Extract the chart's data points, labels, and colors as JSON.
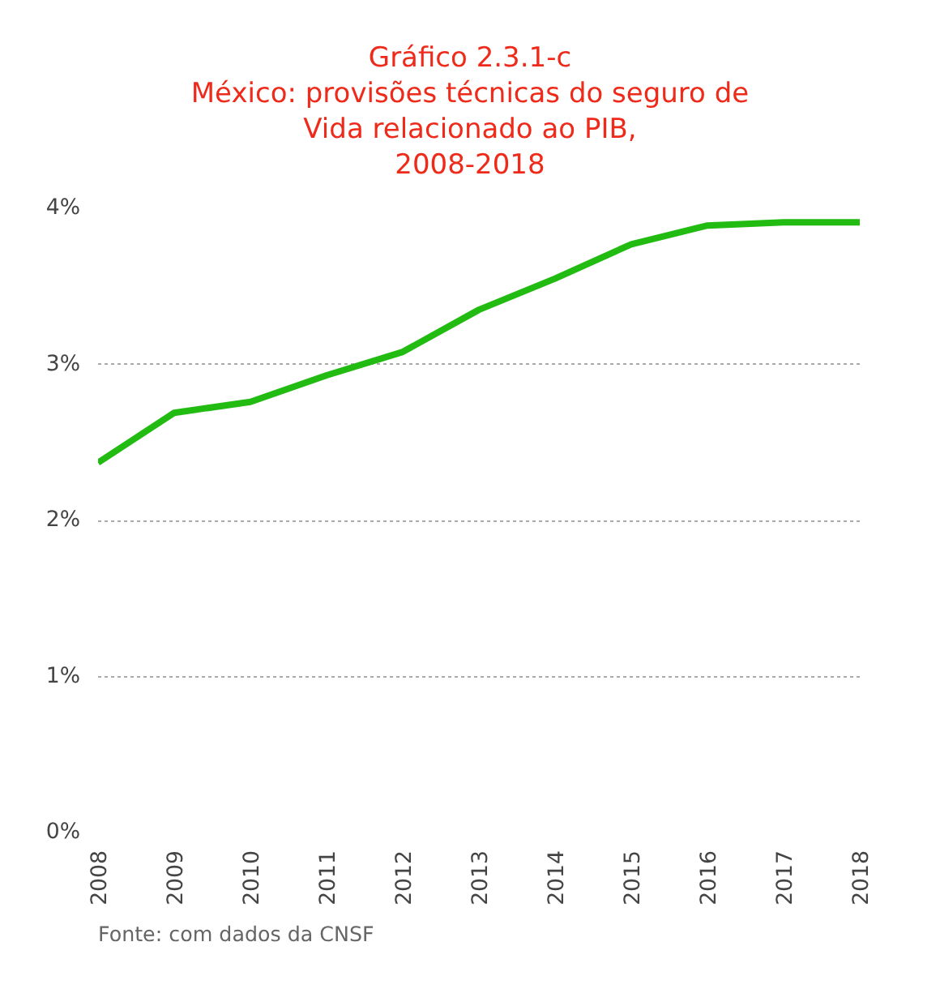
{
  "chart_data": {
    "type": "line",
    "title": "Gráfico 2.3.1-c\nMéxico: provisões técnicas do seguro de\nVida relacionado ao PIB,\n2008-2018",
    "x": [
      2008,
      2009,
      2010,
      2011,
      2012,
      2013,
      2014,
      2015,
      2016,
      2017,
      2018
    ],
    "series": [
      {
        "color": "#22bb11",
        "values": [
          2.37,
          2.69,
          2.76,
          2.93,
          3.08,
          3.35,
          3.55,
          3.77,
          3.89,
          3.91,
          3.91
        ]
      }
    ],
    "xlim": [
      2008,
      2018
    ],
    "xticks": [
      2008,
      2009,
      2010,
      2011,
      2012,
      2013,
      2014,
      2015,
      2016,
      2017,
      2018
    ],
    "ylim": [
      0,
      4
    ],
    "yticks": [
      {
        "value": 0,
        "label": "0%"
      },
      {
        "value": 1,
        "label": "1%"
      },
      {
        "value": 2,
        "label": "2%"
      },
      {
        "value": 3,
        "label": "3%"
      },
      {
        "value": 4,
        "label": "4%"
      }
    ],
    "grid": "y",
    "marker": "none",
    "line_style": "solid",
    "annotations": [
      "Fonte: com dados da CNSF"
    ]
  }
}
